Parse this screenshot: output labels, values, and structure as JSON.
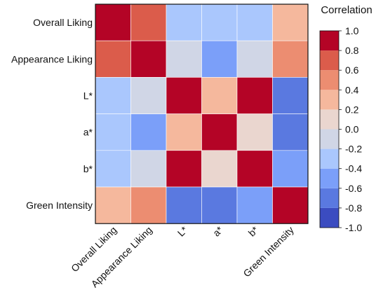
{
  "chart_data": {
    "type": "heatmap",
    "title": "",
    "xlabel": "",
    "ylabel": "",
    "rows": [
      "Overall Liking",
      "Appearance Liking",
      "L*",
      "a*",
      "b*",
      "Green Intensity"
    ],
    "columns": [
      "Overall Liking",
      "Appearance Liking",
      "L*",
      "a*",
      "b*",
      "Green Intensity"
    ],
    "values": [
      [
        1.0,
        0.7,
        -0.3,
        -0.3,
        -0.3,
        0.3
      ],
      [
        0.7,
        1.0,
        -0.1,
        -0.5,
        -0.1,
        0.5
      ],
      [
        -0.3,
        -0.1,
        1.0,
        0.3,
        1.0,
        -0.7
      ],
      [
        -0.3,
        -0.5,
        0.3,
        1.0,
        0.1,
        -0.7
      ],
      [
        -0.3,
        -0.1,
        1.0,
        0.1,
        1.0,
        -0.5
      ],
      [
        0.3,
        0.5,
        -0.7,
        -0.7,
        -0.5,
        1.0
      ]
    ],
    "colorbar": {
      "title": "Correlation",
      "range": [
        -1.0,
        1.0
      ],
      "tick_labels": [
        "1.0",
        "0.8",
        "0.6",
        "0.4",
        "0.2",
        "0.0",
        "-0.2",
        "-0.4",
        "-0.6",
        "-0.8",
        "-1.0"
      ],
      "bins": [
        {
          "from": -1.0,
          "to": -0.8,
          "color": "#3b4cc0"
        },
        {
          "from": -0.8,
          "to": -0.6,
          "color": "#5a79e0"
        },
        {
          "from": -0.6,
          "to": -0.4,
          "color": "#7b9ff9"
        },
        {
          "from": -0.4,
          "to": -0.2,
          "color": "#aac7fd"
        },
        {
          "from": -0.2,
          "to": 0.0,
          "color": "#d0d6e6"
        },
        {
          "from": 0.0,
          "to": 0.2,
          "color": "#ead6cf"
        },
        {
          "from": 0.2,
          "to": 0.4,
          "color": "#f5b89d"
        },
        {
          "from": 0.4,
          "to": 0.6,
          "color": "#ec8d71"
        },
        {
          "from": 0.6,
          "to": 0.8,
          "color": "#db5c4b"
        },
        {
          "from": 0.8,
          "to": 1.0,
          "color": "#b40426"
        }
      ]
    },
    "grid": true
  }
}
